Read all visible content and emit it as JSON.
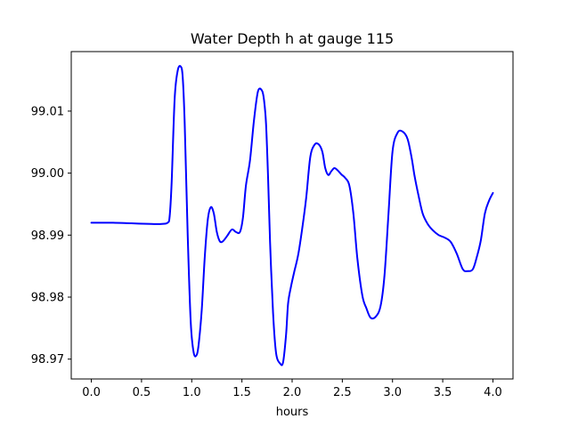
{
  "chart_data": {
    "type": "line",
    "title": "Water Depth h at gauge 115",
    "xlabel": "hours",
    "ylabel": "",
    "xlim": [
      -0.2,
      4.2
    ],
    "ylim": [
      98.9668,
      99.0196
    ],
    "xticks": [
      0.0,
      0.5,
      1.0,
      1.5,
      2.0,
      2.5,
      3.0,
      3.5,
      4.0
    ],
    "xtick_labels": [
      "0.0",
      "0.5",
      "1.0",
      "1.5",
      "2.0",
      "2.5",
      "3.0",
      "3.5",
      "4.0"
    ],
    "yticks": [
      98.97,
      98.98,
      98.99,
      99.0,
      99.01
    ],
    "ytick_labels": [
      "98.97",
      "98.98",
      "98.99",
      "99.00",
      "99.01"
    ],
    "grid": false,
    "series": [
      {
        "color": "#0000ff",
        "x": [
          0.0,
          0.2,
          0.4,
          0.6,
          0.7,
          0.76,
          0.78,
          0.8,
          0.83,
          0.86,
          0.89,
          0.91,
          0.93,
          0.96,
          0.99,
          1.02,
          1.05,
          1.07,
          1.1,
          1.13,
          1.16,
          1.19,
          1.22,
          1.25,
          1.28,
          1.31,
          1.35,
          1.4,
          1.44,
          1.48,
          1.51,
          1.54,
          1.58,
          1.62,
          1.66,
          1.7,
          1.72,
          1.74,
          1.76,
          1.78,
          1.81,
          1.84,
          1.88,
          1.91,
          1.94,
          1.96,
          1.99,
          2.02,
          2.06,
          2.1,
          2.14,
          2.18,
          2.22,
          2.26,
          2.3,
          2.33,
          2.36,
          2.39,
          2.42,
          2.45,
          2.49,
          2.53,
          2.57,
          2.61,
          2.65,
          2.7,
          2.74,
          2.78,
          2.83,
          2.88,
          2.92,
          2.96,
          3.0,
          3.05,
          3.1,
          3.15,
          3.19,
          3.22,
          3.26,
          3.3,
          3.35,
          3.4,
          3.46,
          3.52,
          3.58,
          3.64,
          3.7,
          3.75,
          3.8,
          3.84,
          3.88,
          3.92,
          3.96,
          4.0
        ],
        "y": [
          98.992,
          98.992,
          98.9919,
          98.9918,
          98.9918,
          98.992,
          98.993,
          98.9985,
          99.012,
          99.0165,
          99.0172,
          99.0155,
          99.008,
          98.99,
          98.976,
          98.971,
          98.9707,
          98.9725,
          98.978,
          98.9865,
          98.9925,
          98.9945,
          98.9935,
          98.9905,
          98.989,
          98.989,
          98.9898,
          98.9909,
          98.9905,
          98.9905,
          98.9928,
          98.998,
          99.002,
          99.0085,
          99.0132,
          99.0133,
          99.0118,
          99.008,
          98.9995,
          98.989,
          98.9775,
          98.971,
          98.9693,
          98.9695,
          98.974,
          98.979,
          98.9818,
          98.984,
          98.9868,
          98.991,
          98.996,
          99.0025,
          99.0045,
          99.0047,
          99.0035,
          99.0008,
          98.9997,
          99.0003,
          99.0008,
          99.0005,
          98.9998,
          98.9992,
          98.998,
          98.9935,
          98.9862,
          98.9802,
          98.9782,
          98.9767,
          98.9768,
          98.9785,
          98.9835,
          98.9935,
          99.0035,
          99.0065,
          99.0067,
          99.0055,
          99.0025,
          98.9995,
          98.9963,
          98.9935,
          98.9918,
          98.9908,
          98.99,
          98.9896,
          98.9889,
          98.987,
          98.9845,
          98.9842,
          98.9845,
          98.9865,
          98.9892,
          98.9935,
          98.9955,
          98.9968
        ]
      }
    ]
  }
}
